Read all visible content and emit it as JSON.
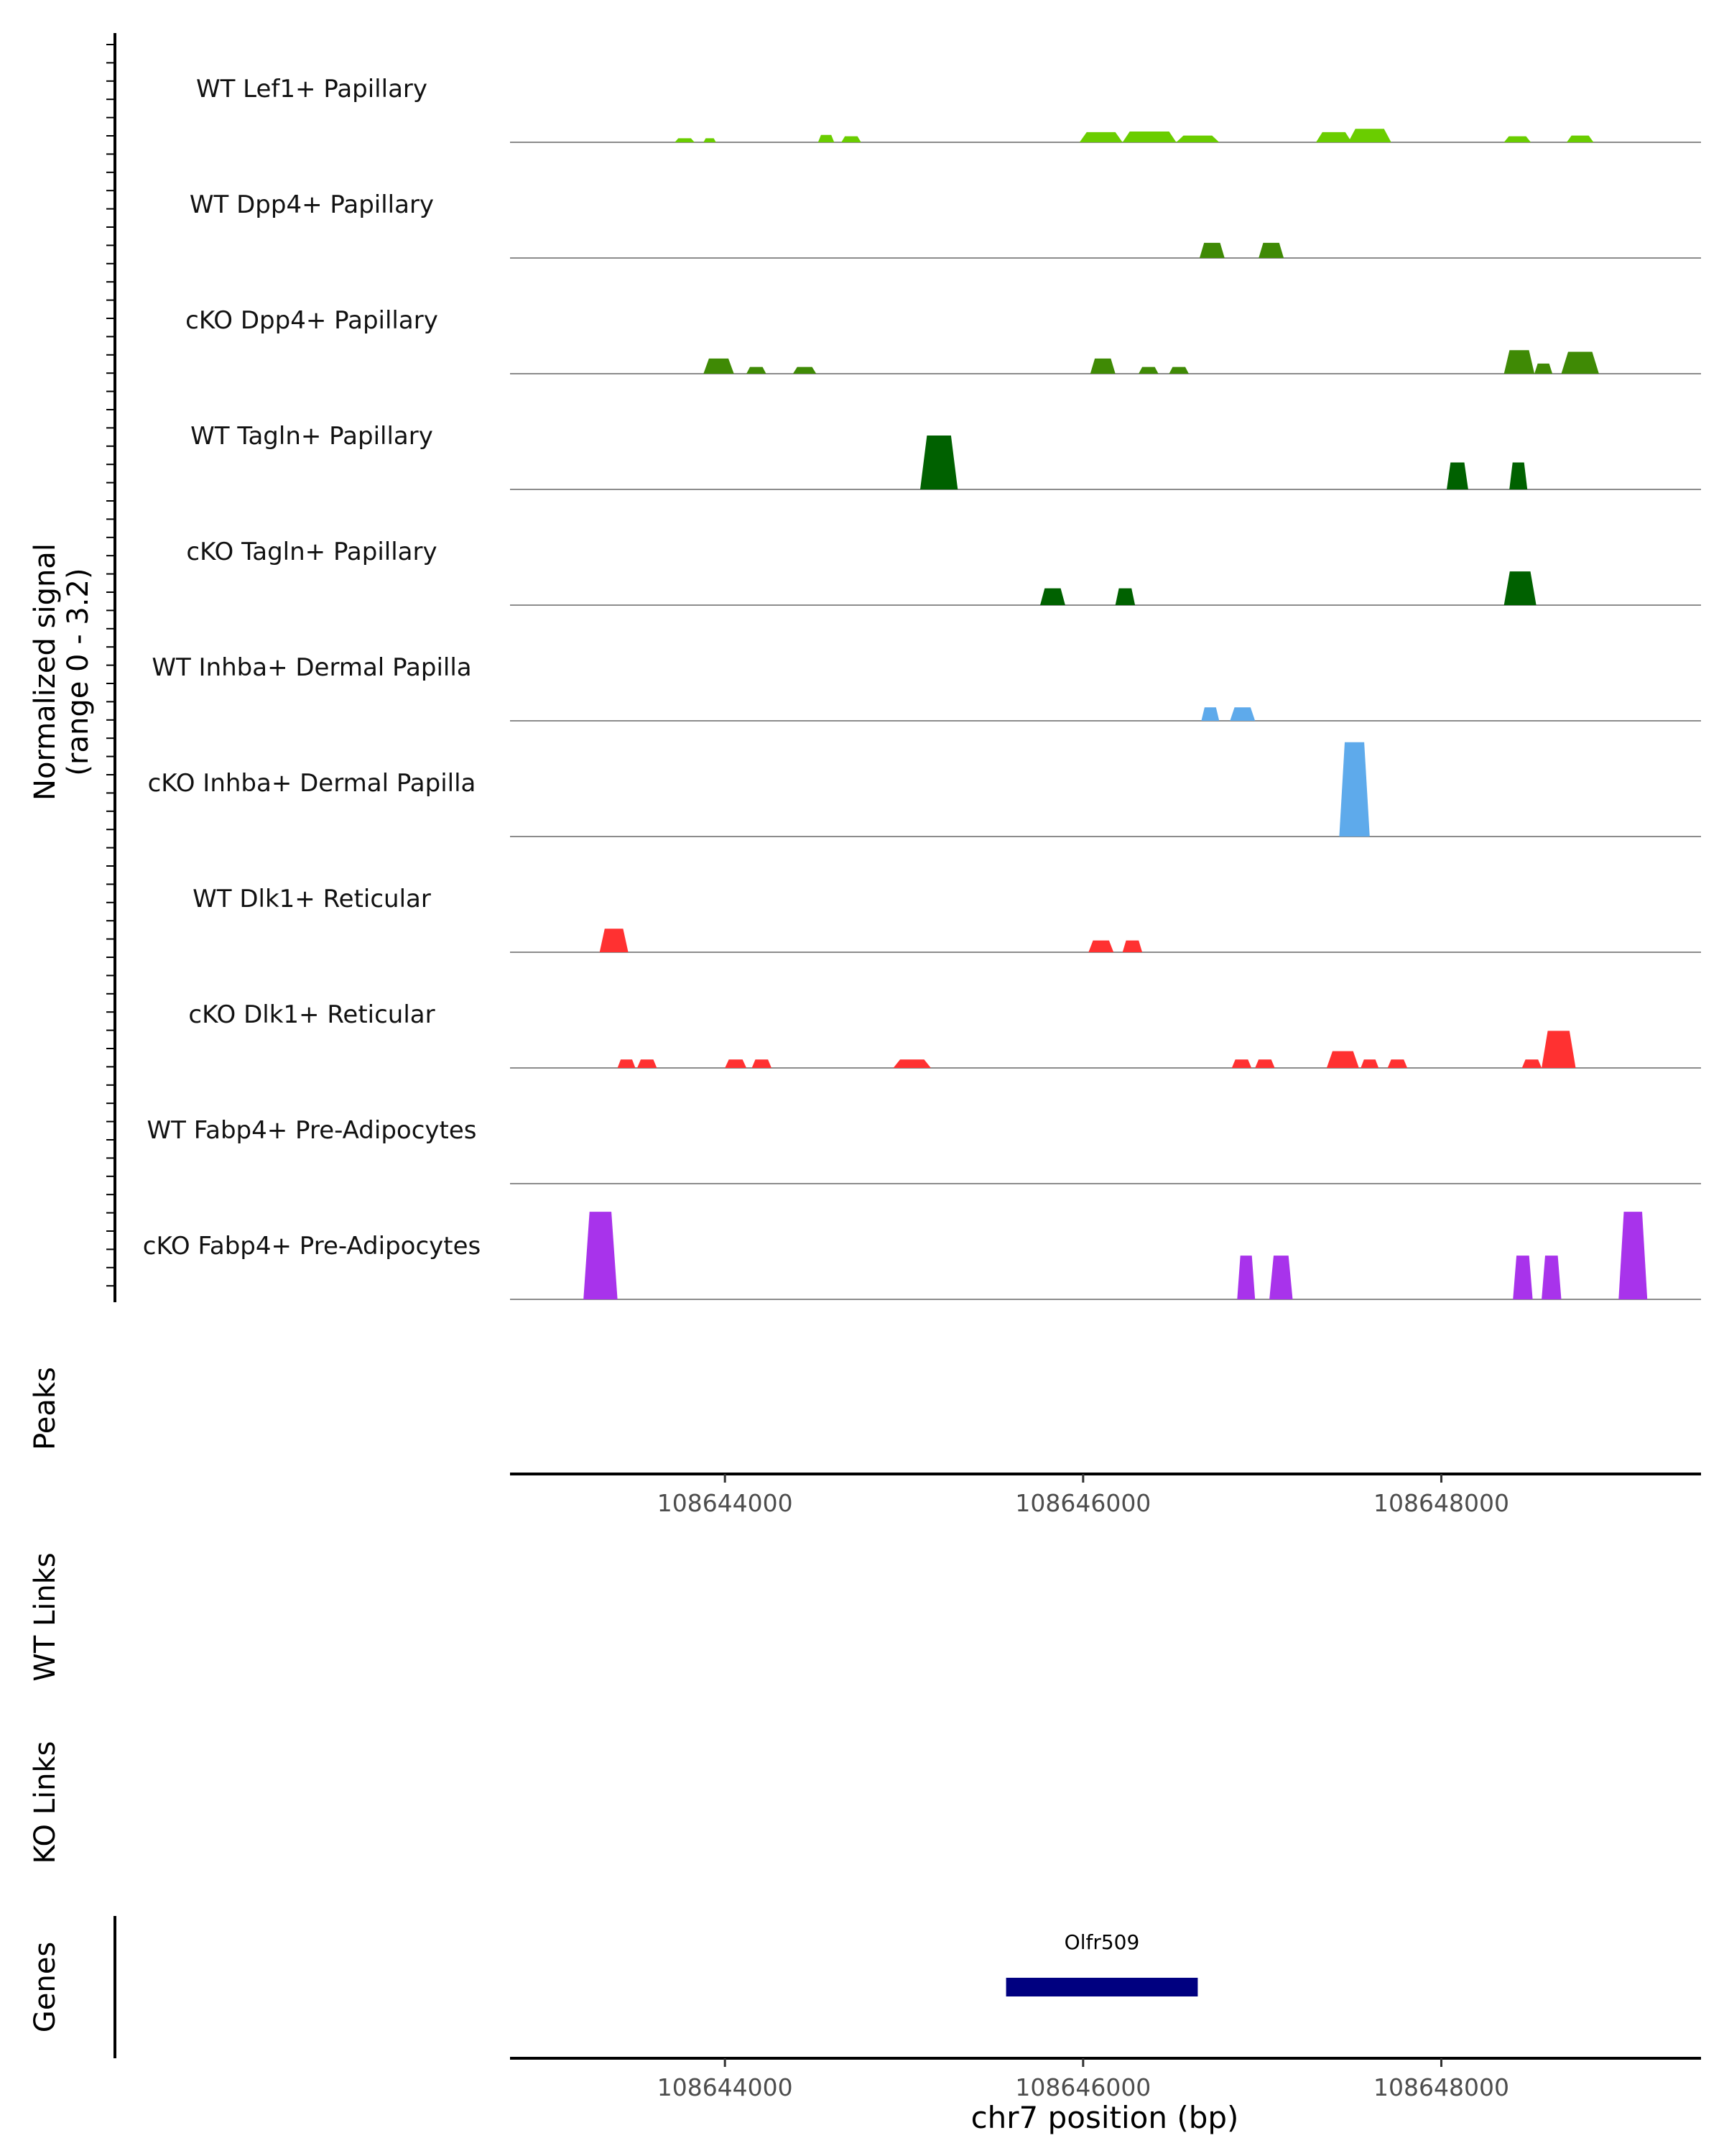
{
  "chart_data": {
    "type": "area",
    "chromosome": "chr7",
    "xlim": [
      108642800,
      108649450
    ],
    "xlabel": "chr7 position (bp)",
    "x_ticks": [
      108644000,
      108646000,
      108648000
    ],
    "x_tick_labels": [
      "108644000",
      "108646000",
      "108648000"
    ],
    "ylabel_line1": "Normalized signal",
    "ylabel_line2": "(range 0 - 3.2)",
    "ylim": [
      0,
      3.2
    ],
    "tracks": [
      {
        "name": "WT Lef1+ Papillary",
        "color": "#6ACD00",
        "peaks": [
          [
            108643720,
            108643830,
            0.12
          ],
          [
            108643880,
            108643950,
            0.12
          ],
          [
            108644520,
            108644610,
            0.22
          ],
          [
            108644650,
            108644760,
            0.18
          ],
          [
            108645980,
            108646220,
            0.3
          ],
          [
            108646220,
            108646520,
            0.32
          ],
          [
            108646520,
            108646760,
            0.2
          ],
          [
            108647300,
            108647500,
            0.3
          ],
          [
            108647480,
            108647720,
            0.4
          ],
          [
            108648350,
            108648500,
            0.18
          ],
          [
            108648700,
            108648850,
            0.2
          ]
        ]
      },
      {
        "name": "WT Dpp4+ Papillary",
        "color": "#3F8A05",
        "peaks": [
          [
            108646650,
            108646790,
            0.45
          ],
          [
            108646980,
            108647120,
            0.45
          ]
        ]
      },
      {
        "name": "cKO Dpp4+ Papillary",
        "color": "#3F8A05",
        "peaks": [
          [
            108643880,
            108644050,
            0.45
          ],
          [
            108644120,
            108644230,
            0.2
          ],
          [
            108644380,
            108644510,
            0.2
          ],
          [
            108646040,
            108646180,
            0.45
          ],
          [
            108646310,
            108646420,
            0.2
          ],
          [
            108646480,
            108646590,
            0.2
          ],
          [
            108648350,
            108648520,
            0.7
          ],
          [
            108648520,
            108648620,
            0.3
          ],
          [
            108648670,
            108648880,
            0.65
          ]
        ]
      },
      {
        "name": "WT Tagln+ Papillary",
        "color": "#006100",
        "peaks": [
          [
            108645090,
            108645300,
            1.6
          ],
          [
            108648030,
            108648150,
            0.8
          ],
          [
            108648380,
            108648480,
            0.8
          ]
        ]
      },
      {
        "name": "cKO Tagln+ Papillary",
        "color": "#006100",
        "peaks": [
          [
            108645760,
            108645900,
            0.5
          ],
          [
            108646180,
            108646290,
            0.5
          ],
          [
            108648350,
            108648530,
            1.0
          ]
        ]
      },
      {
        "name": "WT Inhba+ Dermal Papilla",
        "color": "#5EAAEB",
        "peaks": [
          [
            108646660,
            108646760,
            0.4
          ],
          [
            108646820,
            108646960,
            0.4
          ]
        ]
      },
      {
        "name": "cKO Inhba+ Dermal Papilla",
        "color": "#5EAAEB",
        "peaks": [
          [
            108647430,
            108647600,
            2.8
          ]
        ]
      },
      {
        "name": "WT Dlk1+ Reticular",
        "color": "#FF3131",
        "peaks": [
          [
            108643300,
            108643460,
            0.7
          ],
          [
            108646030,
            108646170,
            0.35
          ],
          [
            108646220,
            108646330,
            0.35
          ]
        ]
      },
      {
        "name": "cKO Dlk1+ Reticular",
        "color": "#FF3131",
        "peaks": [
          [
            108643400,
            108643500,
            0.25
          ],
          [
            108643510,
            108643620,
            0.25
          ],
          [
            108644000,
            108644120,
            0.25
          ],
          [
            108644150,
            108644260,
            0.25
          ],
          [
            108644940,
            108645150,
            0.25
          ],
          [
            108646830,
            108646940,
            0.25
          ],
          [
            108646960,
            108647070,
            0.25
          ],
          [
            108647360,
            108647540,
            0.5
          ],
          [
            108647550,
            108647650,
            0.25
          ],
          [
            108647700,
            108647810,
            0.25
          ],
          [
            108648450,
            108648560,
            0.25
          ],
          [
            108648560,
            108648750,
            1.1
          ]
        ]
      },
      {
        "name": "WT Fabp4+ Pre-Adipocytes",
        "color": "#A833EB",
        "peaks": []
      },
      {
        "name": "cKO Fabp4+ Pre-Adipocytes",
        "color": "#A833EB",
        "peaks": [
          [
            108643210,
            108643400,
            2.6
          ],
          [
            108646860,
            108646960,
            1.3
          ],
          [
            108647040,
            108647170,
            1.3
          ],
          [
            108648400,
            108648510,
            1.3
          ],
          [
            108648560,
            108648670,
            1.3
          ],
          [
            108648990,
            108649150,
            2.6
          ]
        ]
      }
    ],
    "extra_panels": [
      "Peaks",
      "WT Links",
      "KO Links",
      "Genes"
    ],
    "genes": [
      {
        "name": "Olfr509",
        "start": 108645570,
        "end": 108646640,
        "color": "#000080"
      }
    ]
  }
}
